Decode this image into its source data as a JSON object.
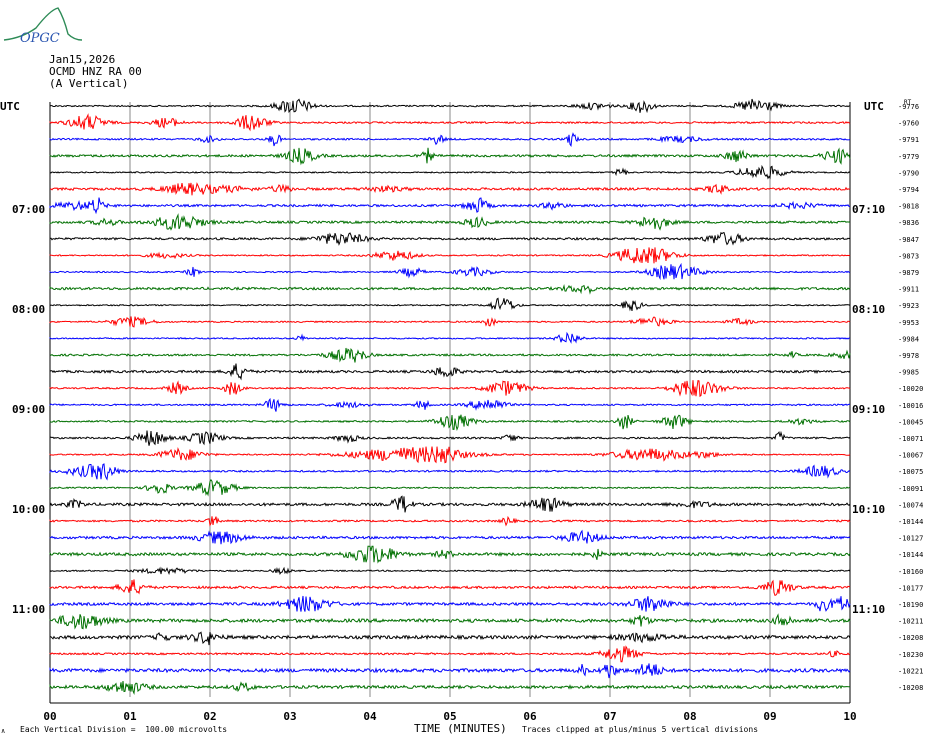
{
  "logo_text": "OPGC",
  "header": {
    "date": "Jan15,2026",
    "station": "OCMD HNZ RA 00",
    "component": "(A Vertical)"
  },
  "left_label": "UTC",
  "right_label": "UTC",
  "footer": {
    "scale_note": "Each Vertical Division =  100.00 microvolts",
    "clip_note": "Traces clipped at plus/minus 5 vertical divisions",
    "tiny_mark": "∧"
  },
  "chart_data": {
    "type": "line",
    "title": "",
    "xlabel": "TIME (MINUTES)",
    "ylabel": "",
    "xlim": [
      0,
      10
    ],
    "x_ticks": [
      "00",
      "01",
      "02",
      "03",
      "04",
      "05",
      "06",
      "07",
      "08",
      "09",
      "10"
    ],
    "left_hour_labels": [
      "07:00",
      "08:00",
      "09:00",
      "10:00",
      "11:00"
    ],
    "right_hour_labels": [
      "07:10",
      "08:10",
      "09:10",
      "10:10",
      "11:10"
    ],
    "first_trace_right_label": "RT",
    "trace_colors": [
      "#000000",
      "#ff0000",
      "#0000ff",
      "#007000"
    ],
    "trace_offsets": [
      -9776,
      -9760,
      -9791,
      -9779,
      -9790,
      -9794,
      -9818,
      -9836,
      -9847,
      -9873,
      -9879,
      -9911,
      -9923,
      -9953,
      -9984,
      -9978,
      -9985,
      -10020,
      -10016,
      -10045,
      -10071,
      -10067,
      -10075,
      -10091,
      -10074,
      -10144,
      -10127,
      -10144,
      -10160,
      -10177,
      -10190,
      -10211,
      -10208,
      -10230,
      -10221,
      -10208
    ],
    "grid": true
  }
}
